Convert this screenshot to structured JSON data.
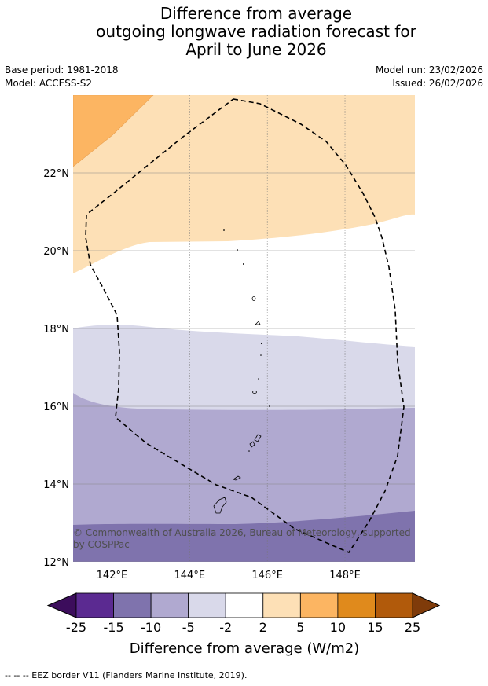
{
  "title": {
    "line1": "Difference from average",
    "line2": "outgoing longwave radiation forecast for",
    "line3": "April to June 2026"
  },
  "meta": {
    "base_period": "Base period: 1981-2018",
    "model": "Model: ACCESS-S2",
    "model_run": "Model run: 23/02/2026",
    "issued": "Issued: 26/02/2026"
  },
  "map": {
    "lon_range": [
      141.0,
      149.8
    ],
    "lat_range": [
      12.0,
      24.0
    ],
    "lon_ticks": [
      "142°E",
      "144°E",
      "146°E",
      "148°E"
    ],
    "lon_tick_values": [
      142,
      144,
      146,
      148
    ],
    "lat_ticks": [
      "22°N",
      "20°N",
      "18°N",
      "16°N",
      "14°N",
      "12°N"
    ],
    "lat_tick_values": [
      22,
      20,
      18,
      16,
      14,
      12
    ],
    "copyright": "© Commonwealth of Australia 2026, Bureau of Meteorology, supported by COSPPac"
  },
  "colorbar": {
    "label": "Difference from average (W/m2)",
    "tick_labels": [
      "-25",
      "-15",
      "-10",
      "-5",
      "-2",
      "2",
      "5",
      "10",
      "15",
      "25"
    ],
    "colors": [
      "#5b2a91",
      "#7f73ad",
      "#b0a9d0",
      "#d9d9ea",
      "#ffffff",
      "#fde0b6",
      "#fcb562",
      "#e08a1c",
      "#b15a0b"
    ],
    "extend_low_color": "#3c0d5c",
    "extend_high_color": "#7f3b0a"
  },
  "footnote": "--  --  -- EEZ border V11 (Flanders Marine Institute, 2019)."
}
